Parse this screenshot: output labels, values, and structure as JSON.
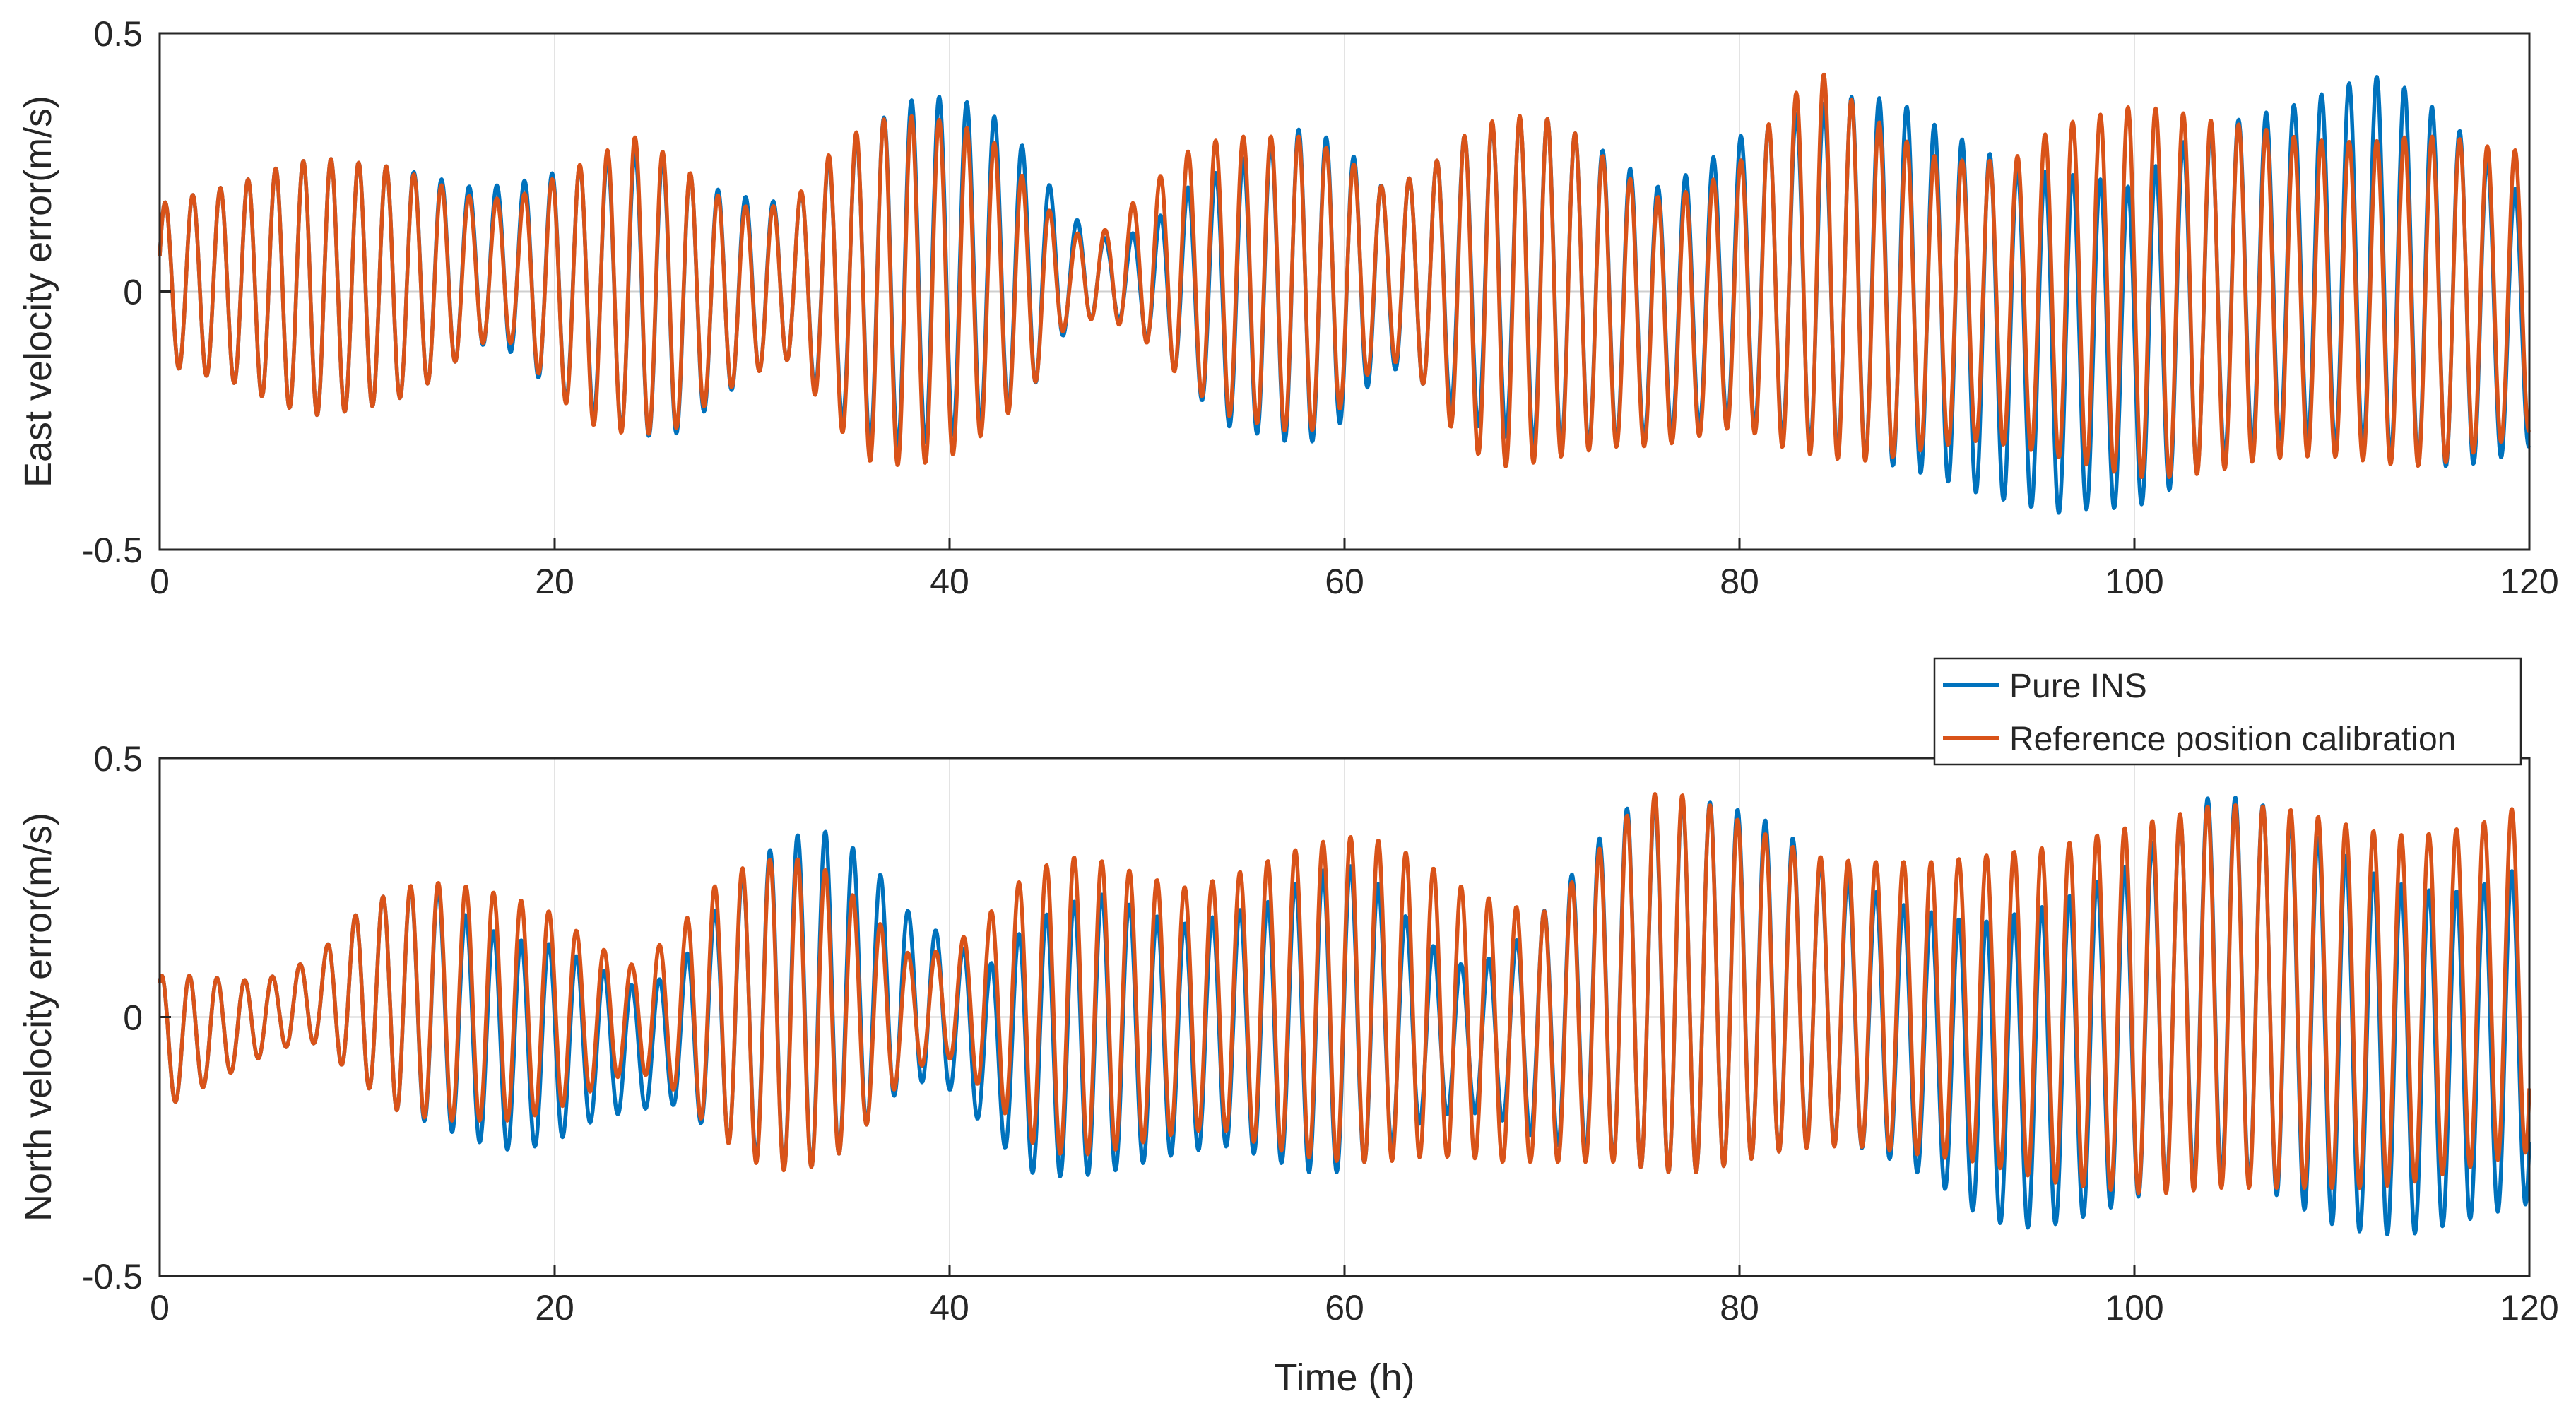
{
  "chart_data": [
    {
      "type": "line",
      "ylabel": "East velocity error(m/s)",
      "xlabel": "",
      "xlim": [
        0,
        120
      ],
      "ylim": [
        -0.5,
        0.5
      ],
      "x_ticks": [
        0,
        20,
        40,
        60,
        80,
        100,
        120
      ],
      "x_tick_labels": [
        "0",
        "20",
        "40",
        "60",
        "80",
        "100",
        "120"
      ],
      "y_ticks": [
        -0.5,
        0,
        0.5
      ],
      "y_tick_labels": [
        "-0.5",
        "0",
        "0.5"
      ],
      "grid": "x",
      "oscillation_period_h": 1.4,
      "series": [
        {
          "name": "Pure INS",
          "color": "#0072BD",
          "envelope": {
            "t": [
              0,
              2,
              4,
              6,
              8,
              10,
              12,
              14,
              16,
              18,
              20,
              22,
              24,
              26,
              28,
              30,
              32,
              34,
              36,
              38,
              40,
              42,
              44,
              46,
              48,
              50,
              52,
              54,
              56,
              58,
              60,
              62,
              64,
              66,
              68,
              70,
              72,
              74,
              76,
              78,
              80,
              82,
              84,
              86,
              88,
              90,
              92,
              94,
              96,
              98,
              100,
              102,
              104,
              106,
              108,
              110,
              112,
              114,
              116,
              118,
              120
            ],
            "upper": [
              0.17,
              0.19,
              0.21,
              0.24,
              0.26,
              0.25,
              0.24,
              0.22,
              0.2,
              0.21,
              0.23,
              0.25,
              0.27,
              0.25,
              0.2,
              0.18,
              0.17,
              0.26,
              0.32,
              0.37,
              0.38,
              0.35,
              0.27,
              0.15,
              0.1,
              0.12,
              0.2,
              0.24,
              0.28,
              0.32,
              0.28,
              0.2,
              0.23,
              0.3,
              0.33,
              0.34,
              0.3,
              0.25,
              0.2,
              0.24,
              0.3,
              0.33,
              0.36,
              0.38,
              0.37,
              0.32,
              0.28,
              0.24,
              0.23,
              0.22,
              0.2,
              0.28,
              0.32,
              0.34,
              0.36,
              0.39,
              0.42,
              0.39,
              0.33,
              0.25,
              0.17
            ],
            "lower": [
              -0.14,
              -0.16,
              -0.18,
              -0.22,
              -0.24,
              -0.23,
              -0.21,
              -0.17,
              -0.1,
              -0.12,
              -0.2,
              -0.24,
              -0.28,
              -0.28,
              -0.22,
              -0.16,
              -0.13,
              -0.23,
              -0.3,
              -0.3,
              -0.28,
              -0.25,
              -0.2,
              -0.07,
              -0.04,
              -0.09,
              -0.18,
              -0.26,
              -0.28,
              -0.3,
              -0.25,
              -0.14,
              -0.18,
              -0.25,
              -0.28,
              -0.3,
              -0.3,
              -0.29,
              -0.28,
              -0.26,
              -0.25,
              -0.28,
              -0.3,
              -0.32,
              -0.34,
              -0.36,
              -0.39,
              -0.41,
              -0.43,
              -0.42,
              -0.42,
              -0.38,
              -0.33,
              -0.3,
              -0.28,
              -0.3,
              -0.31,
              -0.33,
              -0.34,
              -0.33,
              -0.3
            ]
          }
        },
        {
          "name": "Reference position calibration",
          "color": "#D95319",
          "envelope": {
            "t": [
              0,
              2,
              4,
              6,
              8,
              10,
              12,
              14,
              16,
              18,
              20,
              22,
              24,
              26,
              28,
              30,
              32,
              34,
              36,
              38,
              40,
              42,
              44,
              46,
              48,
              50,
              52,
              54,
              56,
              58,
              60,
              62,
              64,
              66,
              68,
              70,
              72,
              74,
              76,
              78,
              80,
              82,
              84,
              86,
              88,
              90,
              92,
              94,
              96,
              98,
              100,
              102,
              104,
              106,
              108,
              110,
              112,
              114,
              116,
              118,
              120
            ],
            "upper": [
              0.17,
              0.19,
              0.21,
              0.24,
              0.26,
              0.25,
              0.24,
              0.21,
              0.18,
              0.18,
              0.22,
              0.26,
              0.3,
              0.26,
              0.19,
              0.16,
              0.17,
              0.27,
              0.33,
              0.34,
              0.33,
              0.3,
              0.21,
              0.11,
              0.12,
              0.2,
              0.27,
              0.3,
              0.3,
              0.3,
              0.26,
              0.2,
              0.23,
              0.3,
              0.34,
              0.34,
              0.3,
              0.23,
              0.18,
              0.2,
              0.25,
              0.35,
              0.43,
              0.36,
              0.3,
              0.26,
              0.25,
              0.26,
              0.32,
              0.34,
              0.36,
              0.35,
              0.33,
              0.32,
              0.3,
              0.29,
              0.29,
              0.3,
              0.3,
              0.28,
              0.27
            ],
            "lower": [
              -0.14,
              -0.16,
              -0.18,
              -0.22,
              -0.24,
              -0.23,
              -0.21,
              -0.17,
              -0.1,
              -0.1,
              -0.2,
              -0.26,
              -0.28,
              -0.27,
              -0.21,
              -0.16,
              -0.13,
              -0.25,
              -0.33,
              -0.34,
              -0.32,
              -0.27,
              -0.2,
              -0.06,
              -0.05,
              -0.1,
              -0.18,
              -0.24,
              -0.26,
              -0.28,
              -0.22,
              -0.12,
              -0.18,
              -0.3,
              -0.34,
              -0.33,
              -0.31,
              -0.3,
              -0.3,
              -0.28,
              -0.26,
              -0.3,
              -0.32,
              -0.33,
              -0.32,
              -0.3,
              -0.29,
              -0.3,
              -0.32,
              -0.34,
              -0.36,
              -0.36,
              -0.35,
              -0.33,
              -0.32,
              -0.32,
              -0.33,
              -0.34,
              -0.33,
              -0.3,
              -0.27
            ]
          }
        }
      ]
    },
    {
      "type": "line",
      "ylabel": "North velocity error(m/s)",
      "xlabel": "Time (h)",
      "xlim": [
        0,
        120
      ],
      "ylim": [
        -0.5,
        0.5
      ],
      "x_ticks": [
        0,
        20,
        40,
        60,
        80,
        100,
        120
      ],
      "x_tick_labels": [
        "0",
        "20",
        "40",
        "60",
        "80",
        "100",
        "120"
      ],
      "y_ticks": [
        -0.5,
        0,
        0.5
      ],
      "y_tick_labels": [
        "-0.5",
        "0",
        "0.5"
      ],
      "grid": "x",
      "oscillation_period_h": 1.4,
      "legend": {
        "placement": "top-right",
        "entries": [
          "Pure INS",
          "Reference position calibration"
        ]
      },
      "series": [
        {
          "name": "Pure INS",
          "color": "#0072BD",
          "envelope": {
            "t": [
              0,
              2,
              4,
              6,
              8,
              10,
              12,
              14,
              16,
              18,
              20,
              22,
              24,
              26,
              28,
              30,
              32,
              34,
              36,
              38,
              40,
              42,
              44,
              46,
              48,
              50,
              52,
              54,
              56,
              58,
              60,
              62,
              64,
              66,
              68,
              70,
              72,
              74,
              76,
              78,
              80,
              82,
              84,
              86,
              88,
              90,
              92,
              94,
              96,
              98,
              100,
              102,
              104,
              106,
              108,
              110,
              112,
              114,
              116,
              118,
              120
            ],
            "upper": [
              0.08,
              0.08,
              0.07,
              0.08,
              0.12,
              0.2,
              0.25,
              0.25,
              0.18,
              0.15,
              0.14,
              0.1,
              0.06,
              0.08,
              0.2,
              0.3,
              0.35,
              0.36,
              0.3,
              0.2,
              0.15,
              0.1,
              0.18,
              0.22,
              0.24,
              0.2,
              0.18,
              0.2,
              0.22,
              0.27,
              0.3,
              0.25,
              0.15,
              0.1,
              0.12,
              0.2,
              0.3,
              0.4,
              0.42,
              0.42,
              0.4,
              0.37,
              0.3,
              0.26,
              0.22,
              0.2,
              0.18,
              0.2,
              0.22,
              0.26,
              0.3,
              0.38,
              0.43,
              0.42,
              0.38,
              0.33,
              0.28,
              0.25,
              0.24,
              0.26,
              0.3
            ],
            "lower": [
              -0.18,
              -0.14,
              -0.1,
              -0.06,
              -0.05,
              -0.12,
              -0.18,
              -0.21,
              -0.24,
              -0.26,
              -0.24,
              -0.2,
              -0.18,
              -0.17,
              -0.22,
              -0.27,
              -0.3,
              -0.28,
              -0.2,
              -0.12,
              -0.14,
              -0.22,
              -0.3,
              -0.31,
              -0.3,
              -0.28,
              -0.26,
              -0.25,
              -0.27,
              -0.3,
              -0.3,
              -0.26,
              -0.2,
              -0.18,
              -0.2,
              -0.24,
              -0.26,
              -0.28,
              -0.3,
              -0.3,
              -0.28,
              -0.26,
              -0.24,
              -0.25,
              -0.28,
              -0.32,
              -0.38,
              -0.41,
              -0.4,
              -0.38,
              -0.35,
              -0.32,
              -0.3,
              -0.32,
              -0.36,
              -0.4,
              -0.42,
              -0.42,
              -0.4,
              -0.38,
              -0.36
            ]
          }
        },
        {
          "name": "Reference position calibration",
          "color": "#D95319",
          "envelope": {
            "t": [
              0,
              2,
              4,
              6,
              8,
              10,
              12,
              14,
              16,
              18,
              20,
              22,
              24,
              26,
              28,
              30,
              32,
              34,
              36,
              38,
              40,
              42,
              44,
              46,
              48,
              50,
              52,
              54,
              56,
              58,
              60,
              62,
              64,
              66,
              68,
              70,
              72,
              74,
              76,
              78,
              80,
              82,
              84,
              86,
              88,
              90,
              92,
              94,
              96,
              98,
              100,
              102,
              104,
              106,
              108,
              110,
              112,
              114,
              116,
              118,
              120
            ],
            "upper": [
              0.08,
              0.08,
              0.07,
              0.08,
              0.12,
              0.2,
              0.25,
              0.26,
              0.25,
              0.23,
              0.2,
              0.14,
              0.1,
              0.16,
              0.25,
              0.3,
              0.31,
              0.28,
              0.2,
              0.12,
              0.13,
              0.2,
              0.28,
              0.31,
              0.3,
              0.27,
              0.25,
              0.27,
              0.3,
              0.33,
              0.35,
              0.34,
              0.3,
              0.25,
              0.22,
              0.2,
              0.28,
              0.38,
              0.44,
              0.42,
              0.38,
              0.34,
              0.31,
              0.3,
              0.3,
              0.3,
              0.31,
              0.32,
              0.33,
              0.35,
              0.37,
              0.39,
              0.41,
              0.41,
              0.4,
              0.38,
              0.36,
              0.35,
              0.36,
              0.38,
              0.42
            ],
            "lower": [
              -0.18,
              -0.14,
              -0.1,
              -0.06,
              -0.05,
              -0.12,
              -0.18,
              -0.2,
              -0.2,
              -0.2,
              -0.18,
              -0.14,
              -0.1,
              -0.14,
              -0.22,
              -0.28,
              -0.3,
              -0.28,
              -0.2,
              -0.1,
              -0.08,
              -0.15,
              -0.24,
              -0.27,
              -0.26,
              -0.24,
              -0.22,
              -0.22,
              -0.25,
              -0.27,
              -0.28,
              -0.28,
              -0.27,
              -0.27,
              -0.28,
              -0.28,
              -0.28,
              -0.28,
              -0.3,
              -0.3,
              -0.28,
              -0.26,
              -0.25,
              -0.25,
              -0.26,
              -0.27,
              -0.28,
              -0.3,
              -0.32,
              -0.33,
              -0.34,
              -0.34,
              -0.33,
              -0.33,
              -0.33,
              -0.33,
              -0.33,
              -0.32,
              -0.3,
              -0.28,
              -0.26
            ]
          }
        }
      ]
    }
  ]
}
